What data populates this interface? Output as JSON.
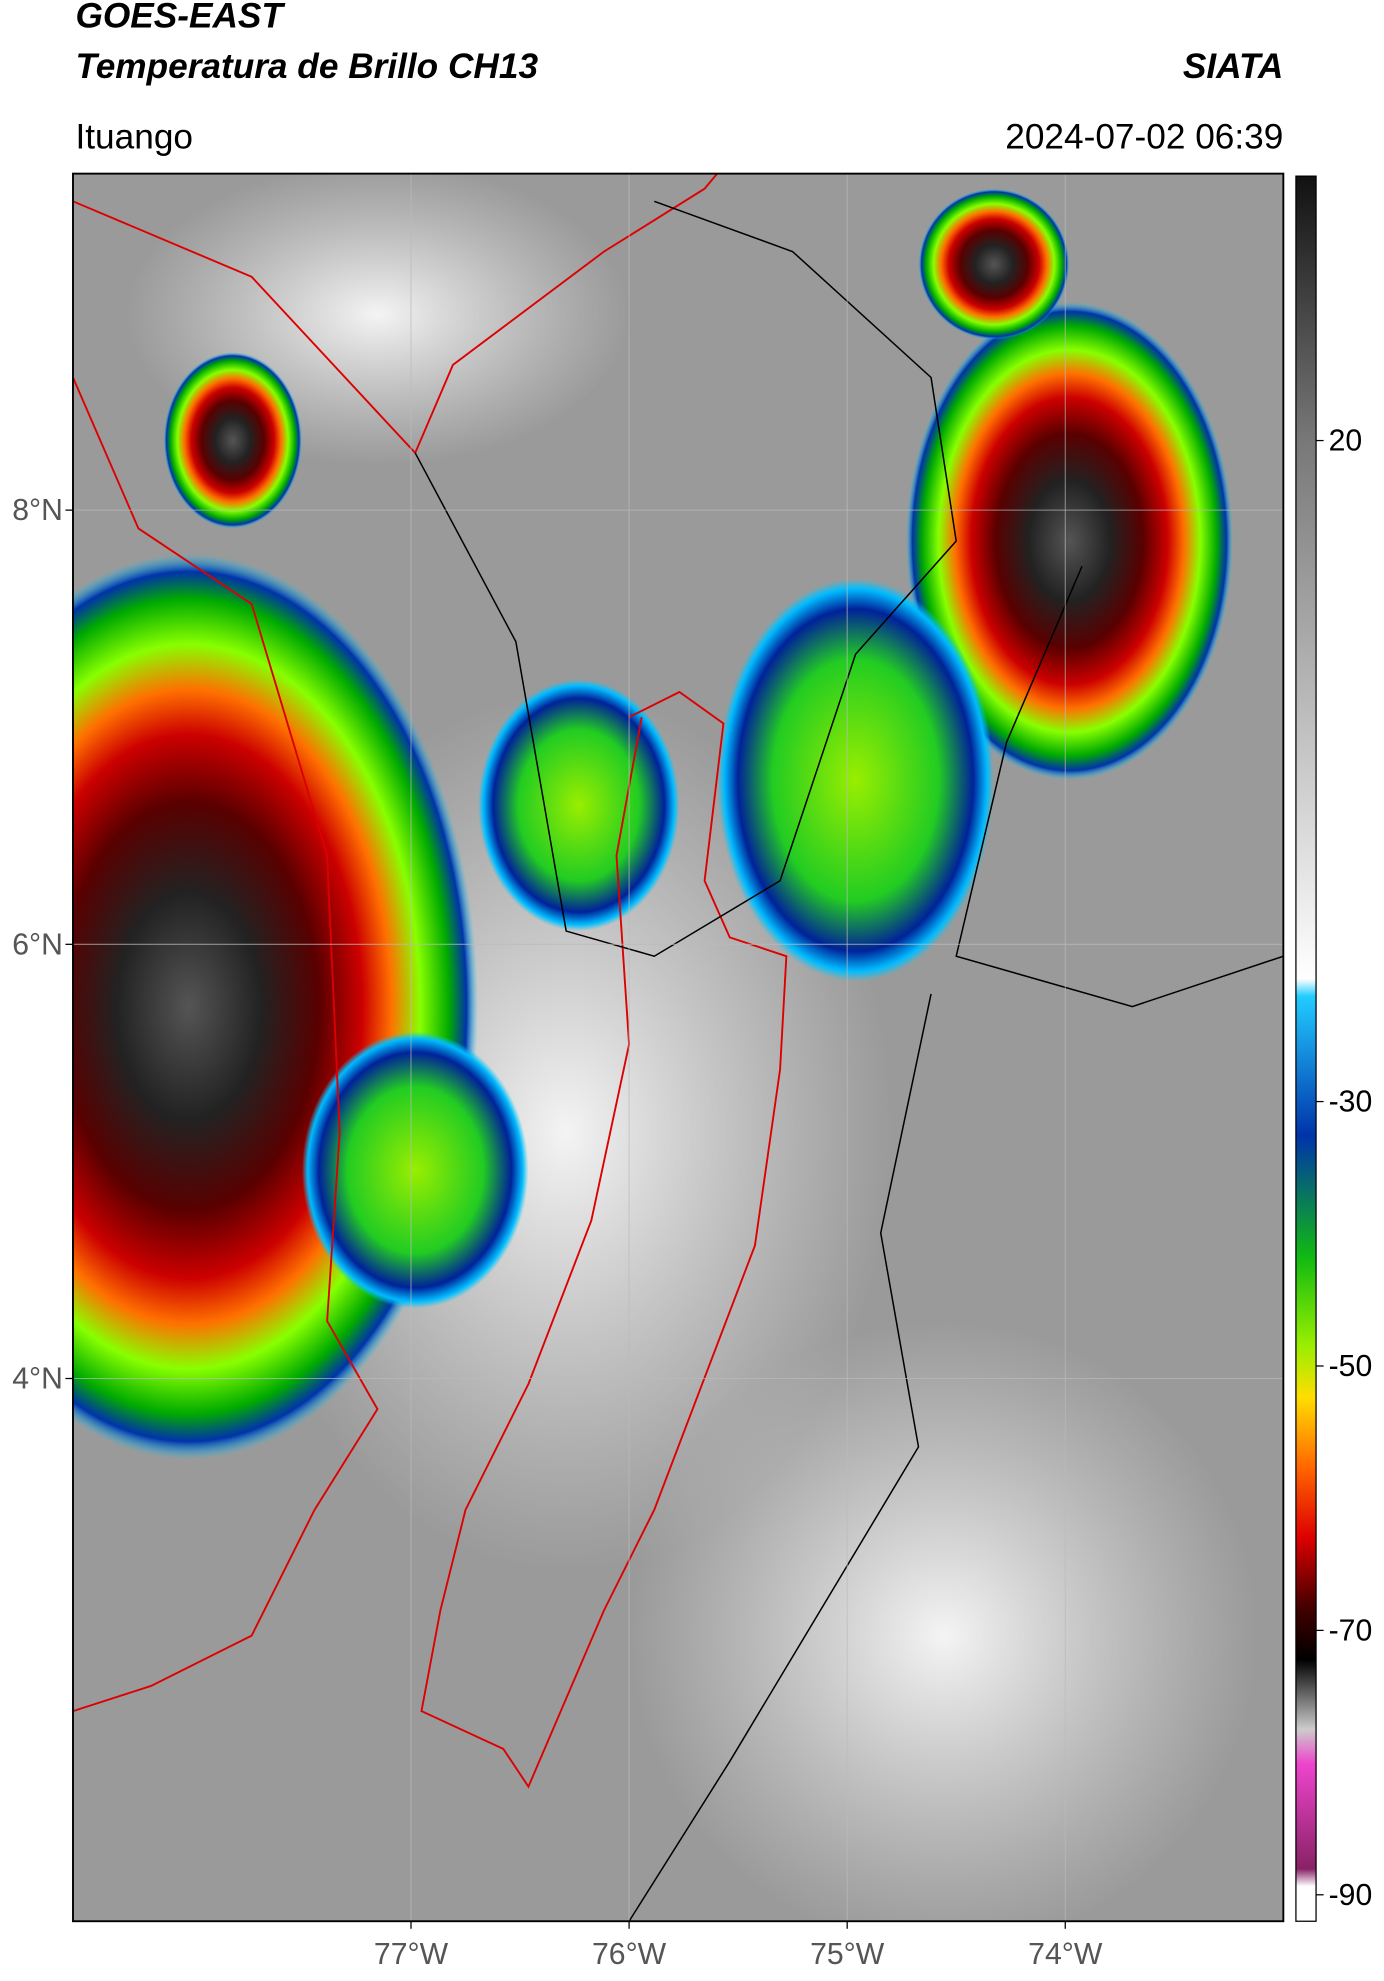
{
  "header": {
    "title_line1": "GOES-EAST",
    "title_line2": "Temperatura de Brillo CH13",
    "brand": "SIATA",
    "location": "Ituango",
    "timestamp": "2024-07-02 06:39"
  },
  "map": {
    "xlim": [
      -78.55,
      -73.0
    ],
    "ylim": [
      1.5,
      9.55
    ],
    "lat_ticks": [
      {
        "value": 8,
        "label": "8°N"
      },
      {
        "value": 6,
        "label": "6°N"
      },
      {
        "value": 4,
        "label": "4°N"
      }
    ],
    "lon_ticks": [
      {
        "value": -77,
        "label": "77°W"
      },
      {
        "value": -76,
        "label": "76°W"
      },
      {
        "value": -75,
        "label": "75°W"
      },
      {
        "value": -74,
        "label": "74°W"
      }
    ],
    "grid": true
  },
  "colorbar": {
    "lim": [
      -92,
      40
    ],
    "ticks": [
      20,
      -30,
      -50,
      -70,
      -90
    ]
  }
}
